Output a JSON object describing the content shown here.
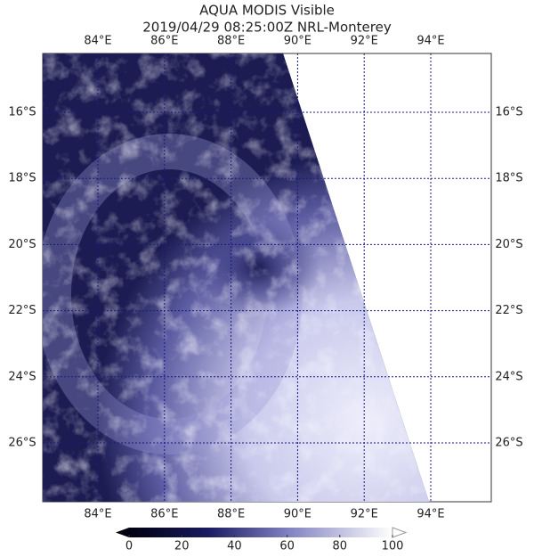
{
  "header": {
    "title": "AQUA MODIS Visible",
    "subtitle": "2019/04/29 08:25:00Z NRL-Monterey"
  },
  "map": {
    "lon_labels": [
      "84°E",
      "86°E",
      "88°E",
      "90°E",
      "92°E",
      "94°E"
    ],
    "lat_labels": [
      "16°S",
      "18°S",
      "20°S",
      "22°S",
      "24°S",
      "26°S"
    ]
  },
  "colorbar": {
    "lim": [
      0,
      100
    ],
    "ticks": [
      0,
      20,
      40,
      60,
      80,
      100
    ]
  }
}
